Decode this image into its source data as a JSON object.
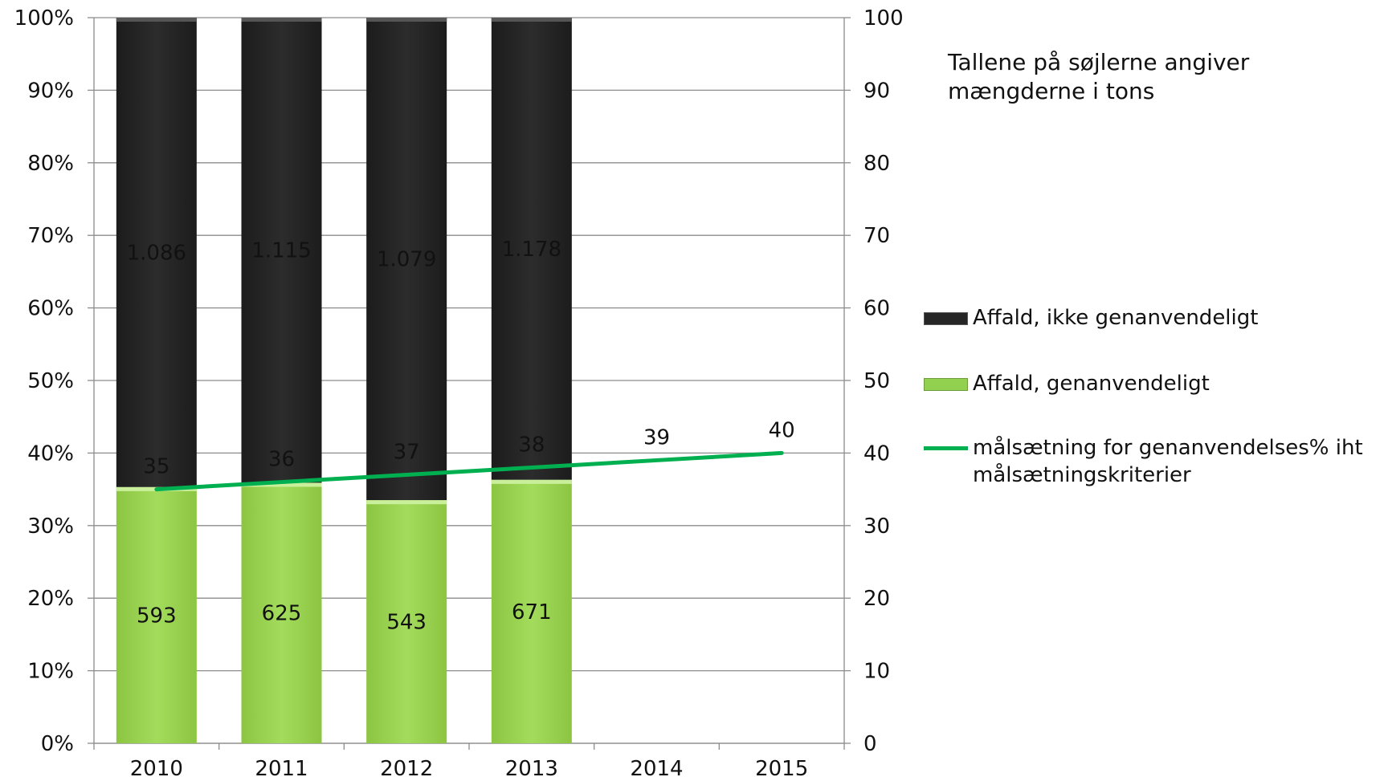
{
  "chart_data": {
    "type": "bar",
    "stacked": true,
    "categories": [
      "2010",
      "2011",
      "2012",
      "2013",
      "2014",
      "2015"
    ],
    "y_left": {
      "ylim": [
        0,
        100
      ],
      "ticks": [
        0,
        10,
        20,
        30,
        40,
        50,
        60,
        70,
        80,
        90,
        100
      ],
      "tick_labels": [
        "0%",
        "10%",
        "20%",
        "30%",
        "40%",
        "50%",
        "60%",
        "70%",
        "80%",
        "90%",
        "100%"
      ]
    },
    "y_right": {
      "ylim": [
        0,
        100
      ],
      "ticks": [
        0,
        10,
        20,
        30,
        40,
        50,
        60,
        70,
        80,
        90,
        100
      ],
      "tick_labels": [
        "0",
        "10",
        "20",
        "30",
        "40",
        "50",
        "60",
        "70",
        "80",
        "90",
        "100"
      ]
    },
    "series": [
      {
        "name": "Affald, genanvendeligt",
        "kind": "bar",
        "axis": "left",
        "color": "#92d050",
        "share_percent": [
          35.3,
          35.9,
          33.5,
          36.3,
          null,
          null
        ],
        "data_labels": [
          "593",
          "625",
          "543",
          "671",
          "",
          ""
        ]
      },
      {
        "name": "Affald, ikke genanvendeligt",
        "kind": "bar",
        "axis": "left",
        "color": "#262626",
        "share_percent": [
          64.7,
          64.1,
          66.5,
          63.7,
          null,
          null
        ],
        "data_labels": [
          "1.086",
          "1.115",
          "1.079",
          "1.178",
          "",
          ""
        ]
      },
      {
        "name": "målsætning for genanvendelses% iht målsætningskriterier",
        "kind": "line",
        "axis": "right",
        "color": "#00b050",
        "values": [
          35,
          36,
          37,
          38,
          39,
          40
        ],
        "data_labels": [
          "35",
          "36",
          "37",
          "38",
          "39",
          "40"
        ]
      }
    ],
    "annotation": [
      "Tallene på søjlerne angiver",
      "mængderne i tons"
    ],
    "grid": true,
    "legend_position": "right"
  }
}
